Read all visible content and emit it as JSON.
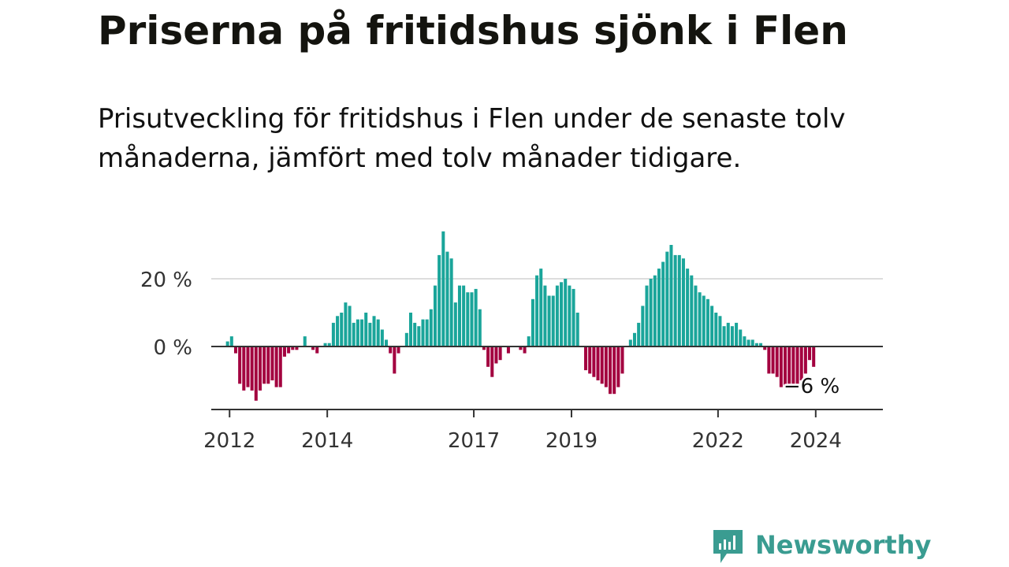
{
  "title": "Priserna på fritidshus sjönk i Flen",
  "subtitle": "Prisutveckling för fritidshus i Flen under de senaste tolv månaderna, jämfört med tolv månader tidigare.",
  "brand": {
    "name": "Newsworthy",
    "color": "#3a9c91"
  },
  "colors": {
    "positive": "#1aa59a",
    "negative": "#a3003f",
    "axis": "#333333",
    "grid": "#dddddd"
  },
  "chart_data": {
    "type": "bar",
    "title": "Priserna på fritidshus sjönk i Flen",
    "ylabel": "",
    "xlabel": "",
    "ylim": [
      -18,
      34
    ],
    "y_ticks": [
      0,
      20
    ],
    "y_tick_labels": [
      "0 %",
      "20 %"
    ],
    "x_ticks": [
      2012,
      2014,
      2017,
      2019,
      2022,
      2024
    ],
    "x_tick_labels": [
      "2012",
      "2014",
      "2017",
      "2019",
      "2022",
      "2024"
    ],
    "x_range": [
      2011.625,
      2025.375
    ],
    "first_period": 2011.9583,
    "period_step": 0.08333,
    "last_value_label": "−6 %",
    "values": [
      1.5,
      3,
      -2,
      -11,
      -13,
      -12,
      -13,
      -16,
      -13,
      -11,
      -11,
      -10,
      -12,
      -12,
      -3,
      -2,
      -1,
      -1,
      0,
      3,
      0,
      -1,
      -2,
      0,
      1,
      1,
      7,
      9,
      10,
      13,
      12,
      7,
      8,
      8,
      10,
      7,
      9,
      8,
      5,
      2,
      -2,
      -8,
      -2,
      0,
      4,
      10,
      7,
      6,
      8,
      8,
      11,
      18,
      27,
      34,
      28,
      26,
      13,
      18,
      18,
      16,
      16,
      17,
      11,
      -1,
      -6,
      -9,
      -5,
      -4,
      0,
      -2,
      0,
      0,
      -1,
      -2,
      3,
      14,
      21,
      23,
      18,
      15,
      15,
      18,
      19,
      20,
      18,
      17,
      10,
      0,
      -7,
      -8,
      -9,
      -10,
      -11,
      -12,
      -14,
      -14,
      -12,
      -8,
      0,
      2,
      4,
      7,
      12,
      18,
      20,
      21,
      23,
      25,
      28,
      30,
      27,
      27,
      26,
      23,
      21,
      18,
      16,
      15,
      14,
      12,
      10,
      9,
      6,
      7,
      6,
      7,
      5,
      3,
      2,
      2,
      1,
      1,
      -1,
      -8,
      -8,
      -9,
      -12,
      -12,
      -11,
      -11,
      -11,
      -10,
      -8,
      -4,
      -6
    ]
  }
}
